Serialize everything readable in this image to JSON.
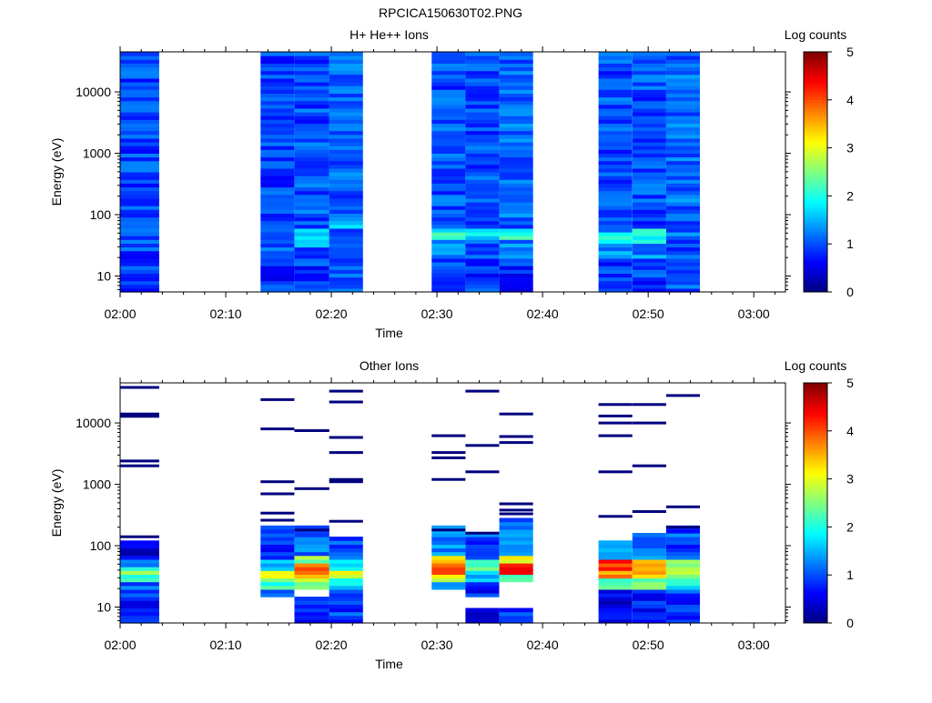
{
  "figure": {
    "title": "RPCICA150630T02.PNG"
  },
  "colors": {
    "colormap": [
      "#00007f",
      "#0000ff",
      "#0080ff",
      "#00ffff",
      "#80ff80",
      "#ffff00",
      "#ff8000",
      "#ff0000",
      "#7f0000"
    ]
  },
  "chart_data": [
    {
      "type": "heatmap",
      "title": "H+ He++ Ions",
      "xlabel": "Time",
      "ylabel": "Energy (eV)",
      "x_ticks": [
        "02:00",
        "02:10",
        "02:20",
        "02:30",
        "02:40",
        "02:50",
        "03:00"
      ],
      "y_ticks": [
        "10",
        "100",
        "1000",
        "10000"
      ],
      "x_range_minutes": [
        0,
        63
      ],
      "y_scale": "log",
      "y_range": [
        5.5,
        45000
      ],
      "colorbar": {
        "label": "Log counts",
        "range": [
          0,
          5
        ],
        "ticks": [
          "0",
          "1",
          "2",
          "3",
          "4",
          "5"
        ]
      },
      "columns": [
        {
          "start_min": 0.0,
          "end_min": 3.7,
          "profile": [
            [
              5,
              14,
              0.85
            ],
            [
              14,
              20,
              0.9
            ],
            [
              20,
              45000,
              0.95
            ]
          ]
        },
        {
          "start_min": 13.3,
          "end_min": 16.5,
          "profile": [
            [
              5,
              14,
              0.85
            ],
            [
              14,
              20,
              0.9
            ],
            [
              20,
              40,
              1.0
            ],
            [
              40,
              45000,
              0.9
            ]
          ]
        },
        {
          "start_min": 16.5,
          "end_min": 19.8,
          "profile": [
            [
              5,
              14,
              0.85
            ],
            [
              14,
              30,
              1.0
            ],
            [
              30,
              60,
              1.6
            ],
            [
              60,
              45000,
              1.0
            ]
          ]
        },
        {
          "start_min": 19.8,
          "end_min": 23.0,
          "profile": [
            [
              5,
              20,
              1.0
            ],
            [
              20,
              60,
              1.1
            ],
            [
              60,
              90,
              1.6
            ],
            [
              90,
              45000,
              1.1
            ]
          ]
        },
        {
          "start_min": 29.5,
          "end_min": 32.7,
          "profile": [
            [
              5,
              20,
              0.9
            ],
            [
              20,
              40,
              1.3
            ],
            [
              40,
              60,
              2.0
            ],
            [
              60,
              45000,
              1.0
            ]
          ]
        },
        {
          "start_min": 32.7,
          "end_min": 35.9,
          "profile": [
            [
              5,
              20,
              0.9
            ],
            [
              20,
              40,
              1.0
            ],
            [
              40,
              60,
              1.7
            ],
            [
              60,
              45000,
              1.0
            ]
          ]
        },
        {
          "start_min": 35.9,
          "end_min": 39.1,
          "profile": [
            [
              5,
              20,
              0.8
            ],
            [
              20,
              40,
              1.2
            ],
            [
              40,
              60,
              2.1
            ],
            [
              60,
              45000,
              1.1
            ]
          ]
        },
        {
          "start_min": 45.3,
          "end_min": 48.5,
          "profile": [
            [
              5,
              20,
              0.9
            ],
            [
              20,
              35,
              1.3
            ],
            [
              35,
              55,
              2.2
            ],
            [
              55,
              45000,
              1.0
            ]
          ]
        },
        {
          "start_min": 48.5,
          "end_min": 51.7,
          "profile": [
            [
              5,
              20,
              0.9
            ],
            [
              20,
              35,
              1.3
            ],
            [
              35,
              60,
              2.0
            ],
            [
              60,
              45000,
              1.0
            ]
          ]
        },
        {
          "start_min": 51.7,
          "end_min": 54.9,
          "profile": [
            [
              5,
              20,
              1.0
            ],
            [
              20,
              40,
              1.0
            ],
            [
              40,
              45000,
              1.1
            ]
          ]
        }
      ]
    },
    {
      "type": "heatmap",
      "title": "Other Ions",
      "xlabel": "Time",
      "ylabel": "Energy (eV)",
      "x_ticks": [
        "02:00",
        "02:10",
        "02:20",
        "02:30",
        "02:40",
        "02:50",
        "03:00"
      ],
      "y_ticks": [
        "10",
        "100",
        "1000",
        "10000"
      ],
      "x_range_minutes": [
        0,
        63
      ],
      "y_scale": "log",
      "y_range": [
        5.5,
        45000
      ],
      "colorbar": {
        "label": "Log counts",
        "range": [
          0,
          5
        ],
        "ticks": [
          "0",
          "1",
          "2",
          "3",
          "4",
          "5"
        ]
      },
      "columns": [
        {
          "start_min": 0.0,
          "end_min": 3.7,
          "profile": [
            [
              5,
              15,
              0.7
            ],
            [
              15,
              25,
              1.1
            ],
            [
              25,
              35,
              2.0
            ],
            [
              35,
              45,
              2.4
            ],
            [
              45,
              60,
              1.0
            ],
            [
              60,
              130,
              0.5
            ]
          ]
        },
        {
          "start_min": 13.3,
          "end_min": 16.5,
          "profile": [
            [
              15,
              20,
              1.0
            ],
            [
              20,
              30,
              2.2
            ],
            [
              30,
              40,
              2.8
            ],
            [
              40,
              60,
              1.5
            ],
            [
              60,
              200,
              0.8
            ]
          ]
        },
        {
          "start_min": 16.5,
          "end_min": 19.8,
          "profile": [
            [
              5,
              15,
              0.7
            ],
            [
              20,
              30,
              2.6
            ],
            [
              30,
              40,
              3.6
            ],
            [
              40,
              50,
              4.0
            ],
            [
              50,
              70,
              2.5
            ],
            [
              70,
              200,
              1.2
            ]
          ]
        },
        {
          "start_min": 19.8,
          "end_min": 23.0,
          "profile": [
            [
              5,
              20,
              0.9
            ],
            [
              20,
              30,
              1.8
            ],
            [
              30,
              40,
              3.0
            ],
            [
              40,
              60,
              2.0
            ],
            [
              60,
              150,
              1.0
            ]
          ]
        },
        {
          "start_min": 29.5,
          "end_min": 32.7,
          "profile": [
            [
              20,
              25,
              1.5
            ],
            [
              25,
              35,
              3.0
            ],
            [
              35,
              50,
              3.8
            ],
            [
              50,
              70,
              3.2
            ],
            [
              70,
              200,
              1.3
            ]
          ]
        },
        {
          "start_min": 32.7,
          "end_min": 35.9,
          "profile": [
            [
              5,
              10,
              0.3
            ],
            [
              15,
              25,
              0.8
            ],
            [
              25,
              40,
              1.5
            ],
            [
              40,
              60,
              2.2
            ],
            [
              60,
              160,
              1.0
            ]
          ]
        },
        {
          "start_min": 35.9,
          "end_min": 39.1,
          "profile": [
            [
              5,
              10,
              0.9
            ],
            [
              25,
              35,
              2.5
            ],
            [
              35,
              50,
              4.2
            ],
            [
              50,
              70,
              3.0
            ],
            [
              70,
              300,
              1.2
            ]
          ]
        },
        {
          "start_min": 45.3,
          "end_min": 48.5,
          "profile": [
            [
              5,
              20,
              0.5
            ],
            [
              20,
              30,
              2.3
            ],
            [
              30,
              40,
              3.6
            ],
            [
              40,
              60,
              4.2
            ],
            [
              60,
              130,
              1.4
            ]
          ]
        },
        {
          "start_min": 48.5,
          "end_min": 51.7,
          "profile": [
            [
              5,
              20,
              0.7
            ],
            [
              20,
              30,
              2.4
            ],
            [
              30,
              45,
              3.6
            ],
            [
              45,
              60,
              3.3
            ],
            [
              60,
              160,
              1.2
            ]
          ]
        },
        {
          "start_min": 51.7,
          "end_min": 54.9,
          "profile": [
            [
              5,
              20,
              0.9
            ],
            [
              20,
              30,
              1.8
            ],
            [
              30,
              60,
              2.6
            ],
            [
              60,
              200,
              1.0
            ]
          ]
        }
      ],
      "extra_lines_eV": [
        [
          0,
          3.7,
          [
            2000,
            2400,
            12800,
            14000,
            38000,
            140
          ]
        ],
        [
          13.3,
          16.5,
          [
            700,
            1100,
            8000,
            24000,
            340,
            260
          ]
        ],
        [
          16.5,
          19.8,
          [
            850,
            7500,
            180
          ]
        ],
        [
          19.8,
          23.0,
          [
            1100,
            1200,
            3300,
            5800,
            22000,
            33000,
            250
          ]
        ],
        [
          29.5,
          32.7,
          [
            1200,
            2700,
            3300,
            6200,
            180
          ]
        ],
        [
          32.7,
          35.9,
          [
            1600,
            4300,
            33000,
            160
          ]
        ],
        [
          35.9,
          39.1,
          [
            4800,
            6000,
            14000,
            380,
            480,
            330
          ]
        ],
        [
          45.3,
          48.5,
          [
            1600,
            6200,
            10000,
            13000,
            20000,
            300
          ]
        ],
        [
          48.5,
          51.7,
          [
            2000,
            10000,
            20000,
            360
          ]
        ],
        [
          51.7,
          54.9,
          [
            28000,
            430,
            200
          ]
        ]
      ]
    }
  ]
}
